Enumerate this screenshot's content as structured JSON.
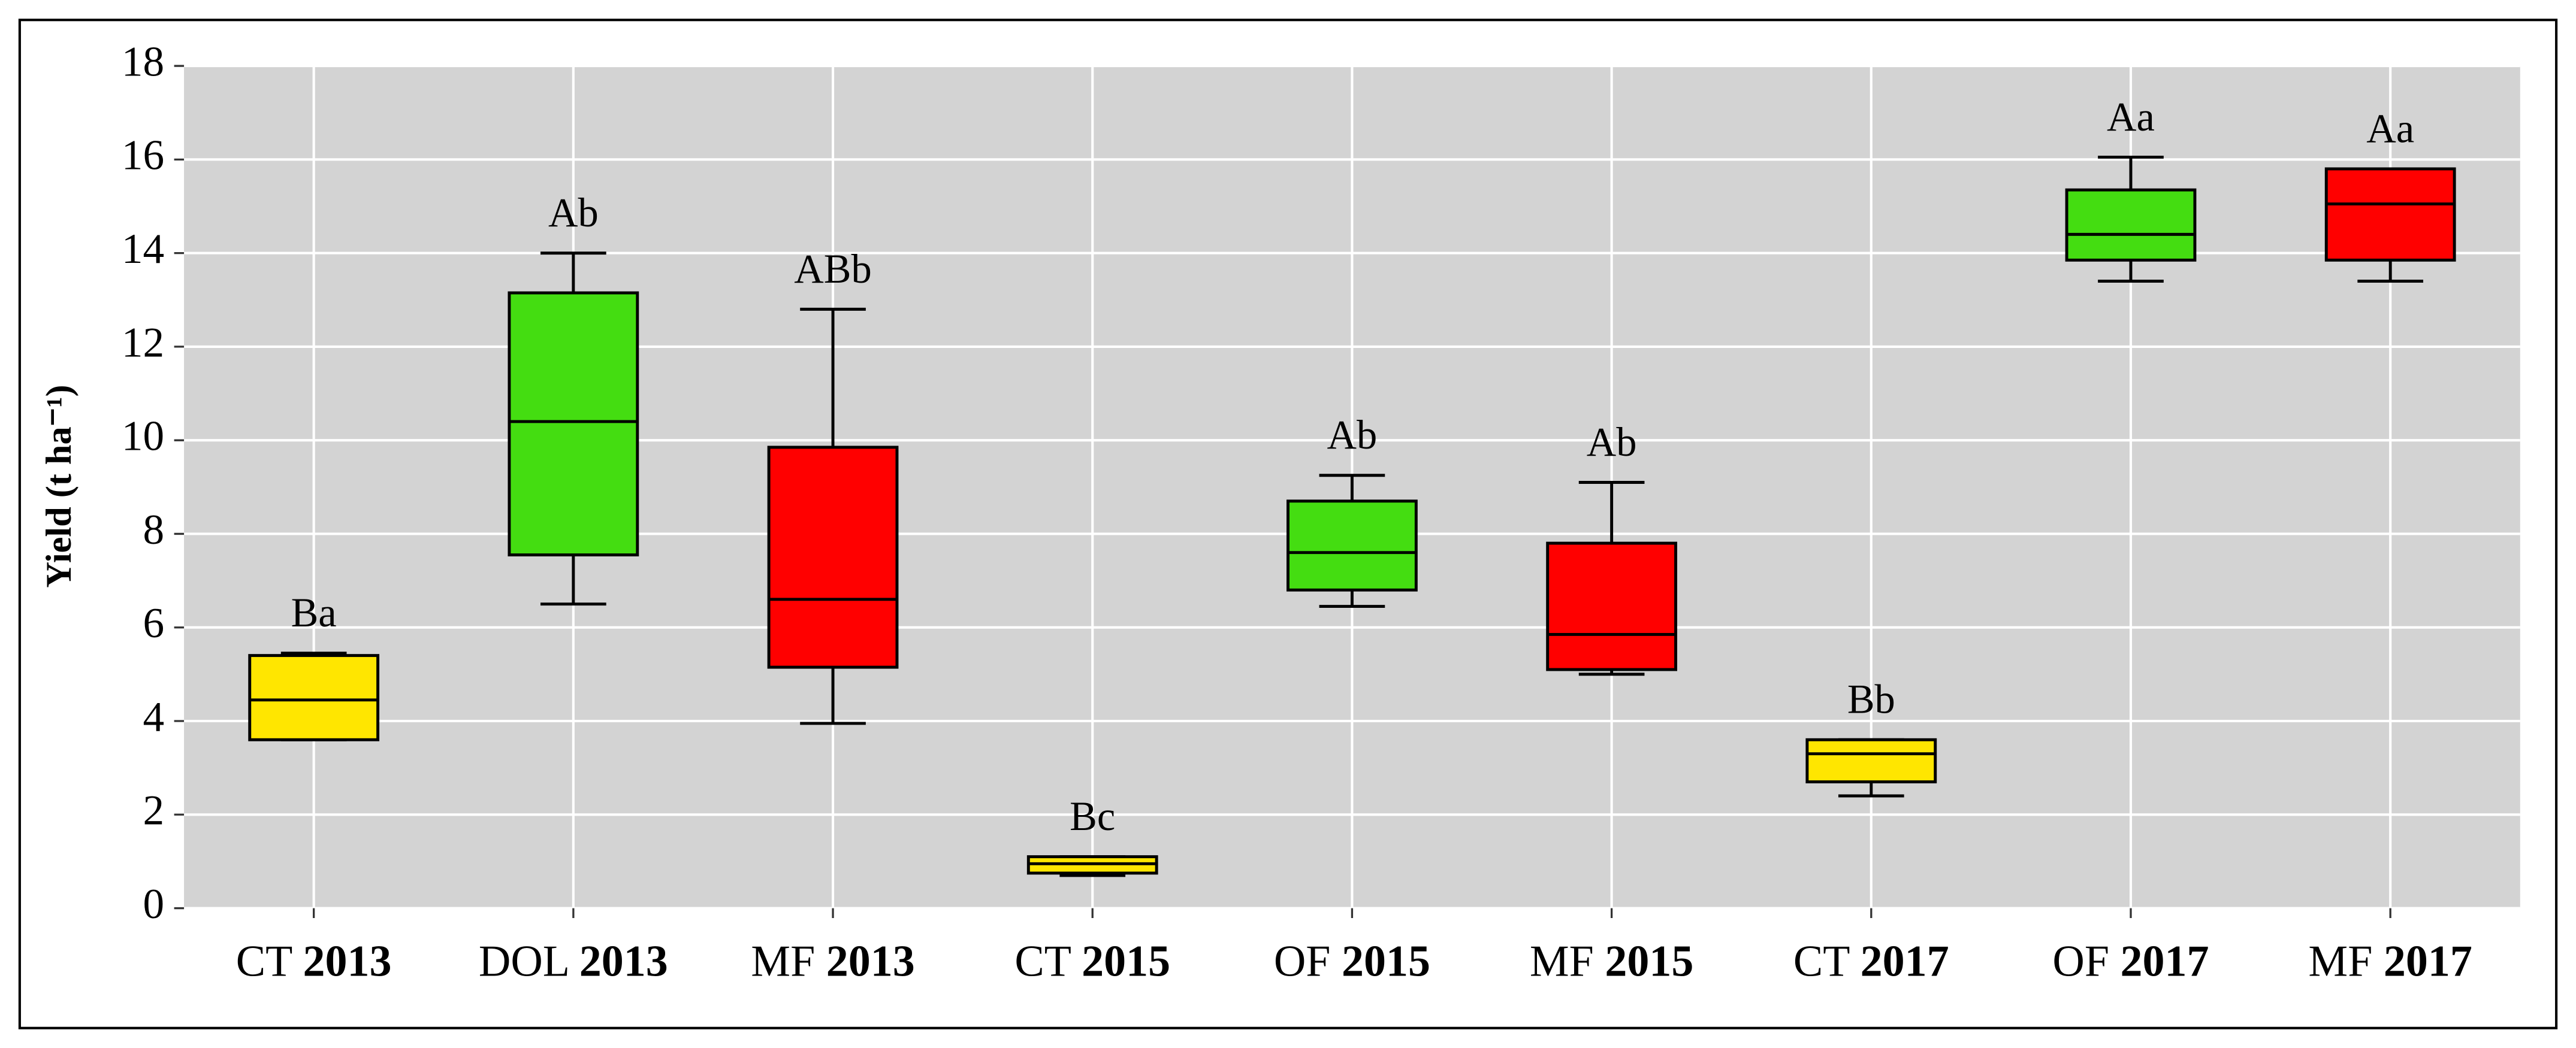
{
  "chart_data": {
    "type": "box",
    "y_label": "Yield (t ha⁻¹)",
    "categories": [
      "CT 2013",
      "DOL 2013",
      "MF 2013",
      "CT 2015",
      "OF 2015",
      "MF 2015",
      "CT 2017",
      "OF 2017",
      "MF 2017"
    ],
    "min": [
      3.6,
      6.5,
      3.95,
      0.7,
      6.45,
      5.0,
      2.4,
      13.4,
      13.4
    ],
    "q1": [
      3.6,
      7.55,
      5.15,
      0.75,
      6.8,
      5.1,
      2.7,
      13.85,
      13.85
    ],
    "median": [
      4.45,
      10.4,
      6.6,
      0.95,
      7.6,
      5.85,
      3.3,
      14.4,
      15.05
    ],
    "q3": [
      5.4,
      13.15,
      9.85,
      1.1,
      8.7,
      7.8,
      3.6,
      15.35,
      15.8
    ],
    "max": [
      5.45,
      14.0,
      12.8,
      1.1,
      9.25,
      9.1,
      3.6,
      16.05,
      15.8
    ],
    "colors": [
      "#ffe600",
      "#44dd11",
      "#ff0000",
      "#ffe600",
      "#44dd11",
      "#ff0000",
      "#ffe600",
      "#44dd11",
      "#ff0000"
    ],
    "annotations": [
      "Ba",
      "Ab",
      "ABb",
      "Bc",
      "Ab",
      "Ab",
      "Bb",
      "Aa",
      "Aa"
    ],
    "ylim": [
      0,
      18
    ],
    "yticks": [
      0,
      2,
      4,
      6,
      8,
      10,
      12,
      14,
      16,
      18
    ],
    "grid": true
  }
}
